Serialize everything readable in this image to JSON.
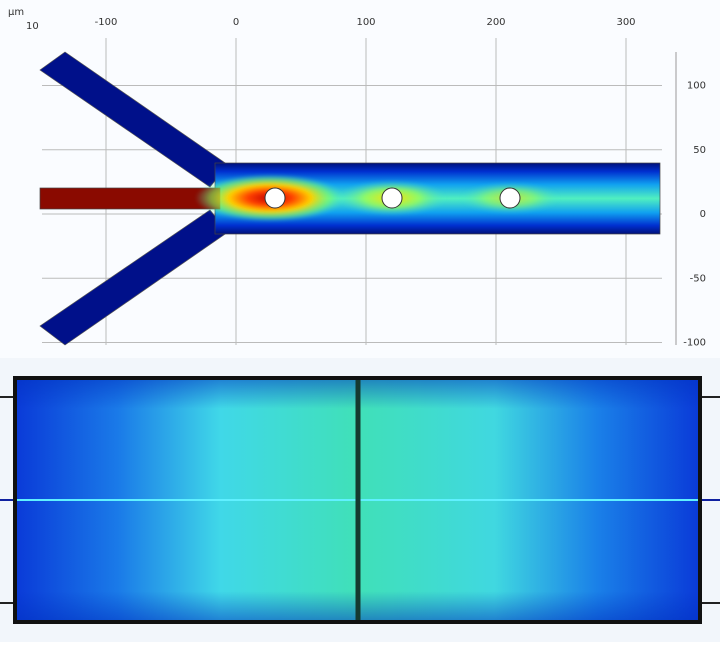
{
  "top_panel": {
    "unit": "µm",
    "corner_label": "10",
    "x_ticks": [
      -100,
      0,
      100,
      200,
      300
    ],
    "y_ticks": [
      100,
      50,
      0,
      -50,
      -100
    ]
  }
}
